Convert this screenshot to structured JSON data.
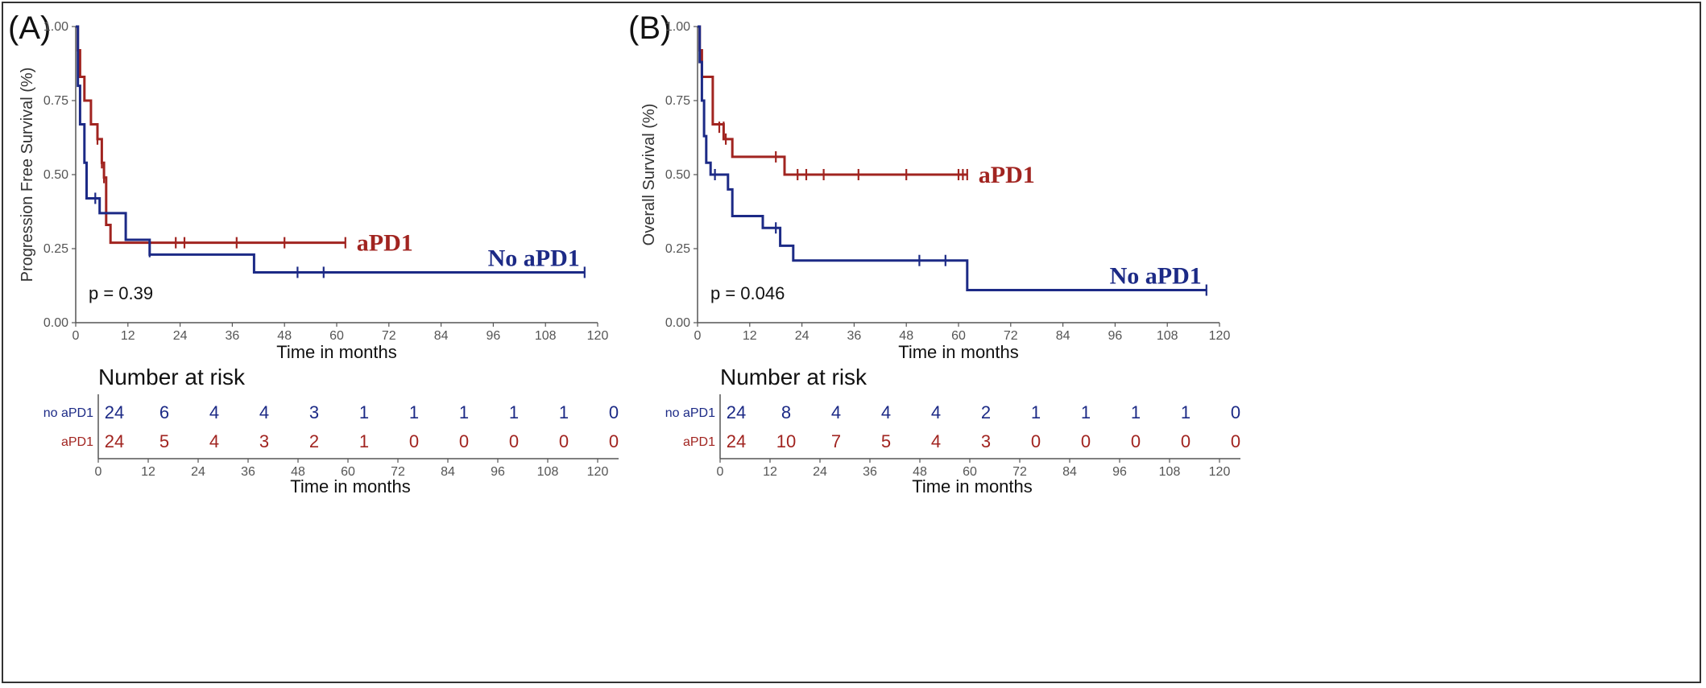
{
  "figure": {
    "colors": {
      "apd1": "#a12420",
      "no_apd1": "#1c2a86",
      "axis": "#555555"
    },
    "time_ticks": [
      0,
      12,
      24,
      36,
      48,
      60,
      72,
      84,
      96,
      108,
      120
    ],
    "y_ticks": [
      "0.00",
      "0.25",
      "0.50",
      "0.75",
      "1.00"
    ]
  },
  "chart_data": [
    {
      "type": "line",
      "panel_label": "(A)",
      "xlabel": "Time in months",
      "ylabel": "Progression Free Survival (%)",
      "xlim": [
        0,
        120
      ],
      "ylim": [
        0,
        1
      ],
      "p_value": "p = 0.39",
      "series": [
        {
          "name": "aPD1",
          "steps": [
            [
              0,
              1.0
            ],
            [
              0.5,
              0.92
            ],
            [
              1,
              0.83
            ],
            [
              2,
              0.75
            ],
            [
              3.5,
              0.67
            ],
            [
              5,
              0.62
            ],
            [
              6,
              0.54
            ],
            [
              6.5,
              0.49
            ],
            [
              7,
              0.33
            ],
            [
              8,
              0.27
            ],
            [
              62,
              0.27
            ]
          ],
          "censor": [
            [
              5,
              0.62
            ],
            [
              6,
              0.54
            ],
            [
              6.5,
              0.49
            ],
            [
              23,
              0.27
            ],
            [
              25,
              0.27
            ],
            [
              37,
              0.27
            ],
            [
              48,
              0.27
            ],
            [
              62,
              0.27
            ]
          ]
        },
        {
          "name": "No aPD1",
          "steps": [
            [
              0,
              1.0
            ],
            [
              0.5,
              0.8
            ],
            [
              1,
              0.67
            ],
            [
              2,
              0.54
            ],
            [
              2.5,
              0.42
            ],
            [
              5.5,
              0.37
            ],
            [
              11.5,
              0.28
            ],
            [
              17,
              0.23
            ],
            [
              41,
              0.17
            ],
            [
              117,
              0.17
            ]
          ],
          "censor": [
            [
              4.5,
              0.42
            ],
            [
              17,
              0.24
            ],
            [
              51,
              0.17
            ],
            [
              57,
              0.17
            ],
            [
              117,
              0.17
            ]
          ]
        }
      ],
      "risk_table": {
        "title": "Number at risk",
        "times": [
          0,
          12,
          24,
          36,
          48,
          60,
          72,
          84,
          96,
          108,
          120
        ],
        "rows": [
          {
            "label": "no aPD1",
            "counts": [
              "24",
              "6",
              "4",
              "4",
              "3",
              "1",
              "1",
              "1",
              "1",
              "1",
              "0"
            ]
          },
          {
            "label": "aPD1",
            "counts": [
              "24",
              "5",
              "4",
              "3",
              "2",
              "1",
              "0",
              "0",
              "0",
              "0",
              "0"
            ]
          }
        ],
        "xlabel": "Time in months"
      }
    },
    {
      "type": "line",
      "panel_label": "(B)",
      "xlabel": "Time in months",
      "ylabel": "Overall Survival (%)",
      "xlim": [
        0,
        120
      ],
      "ylim": [
        0,
        1
      ],
      "p_value": "p = 0.046",
      "series": [
        {
          "name": "aPD1",
          "steps": [
            [
              0,
              1.0
            ],
            [
              0.5,
              0.92
            ],
            [
              1,
              0.83
            ],
            [
              3.5,
              0.67
            ],
            [
              6,
              0.62
            ],
            [
              8,
              0.56
            ],
            [
              20,
              0.5
            ],
            [
              62,
              0.5
            ]
          ],
          "censor": [
            [
              5,
              0.66
            ],
            [
              6,
              0.66
            ],
            [
              6.5,
              0.62
            ],
            [
              18,
              0.56
            ],
            [
              23,
              0.5
            ],
            [
              25,
              0.5
            ],
            [
              29,
              0.5
            ],
            [
              37,
              0.5
            ],
            [
              48,
              0.5
            ],
            [
              60,
              0.5
            ],
            [
              61,
              0.5
            ],
            [
              62,
              0.5
            ]
          ]
        },
        {
          "name": "No aPD1",
          "steps": [
            [
              0,
              1.0
            ],
            [
              0.5,
              0.88
            ],
            [
              1,
              0.75
            ],
            [
              1.5,
              0.63
            ],
            [
              2,
              0.54
            ],
            [
              3,
              0.5
            ],
            [
              7,
              0.45
            ],
            [
              8,
              0.36
            ],
            [
              15,
              0.32
            ],
            [
              19,
              0.26
            ],
            [
              22,
              0.21
            ],
            [
              62,
              0.11
            ],
            [
              117,
              0.11
            ]
          ],
          "censor": [
            [
              4,
              0.5
            ],
            [
              18,
              0.32
            ],
            [
              51,
              0.21
            ],
            [
              57,
              0.21
            ],
            [
              117,
              0.11
            ]
          ]
        }
      ],
      "risk_table": {
        "title": "Number at risk",
        "times": [
          0,
          12,
          24,
          36,
          48,
          60,
          72,
          84,
          96,
          108,
          120
        ],
        "rows": [
          {
            "label": "no aPD1",
            "counts": [
              "24",
              "8",
              "4",
              "4",
              "4",
              "2",
              "1",
              "1",
              "1",
              "1",
              "0"
            ]
          },
          {
            "label": "aPD1",
            "counts": [
              "24",
              "10",
              "7",
              "5",
              "4",
              "3",
              "0",
              "0",
              "0",
              "0",
              "0"
            ]
          }
        ],
        "xlabel": "Time in months"
      }
    }
  ]
}
